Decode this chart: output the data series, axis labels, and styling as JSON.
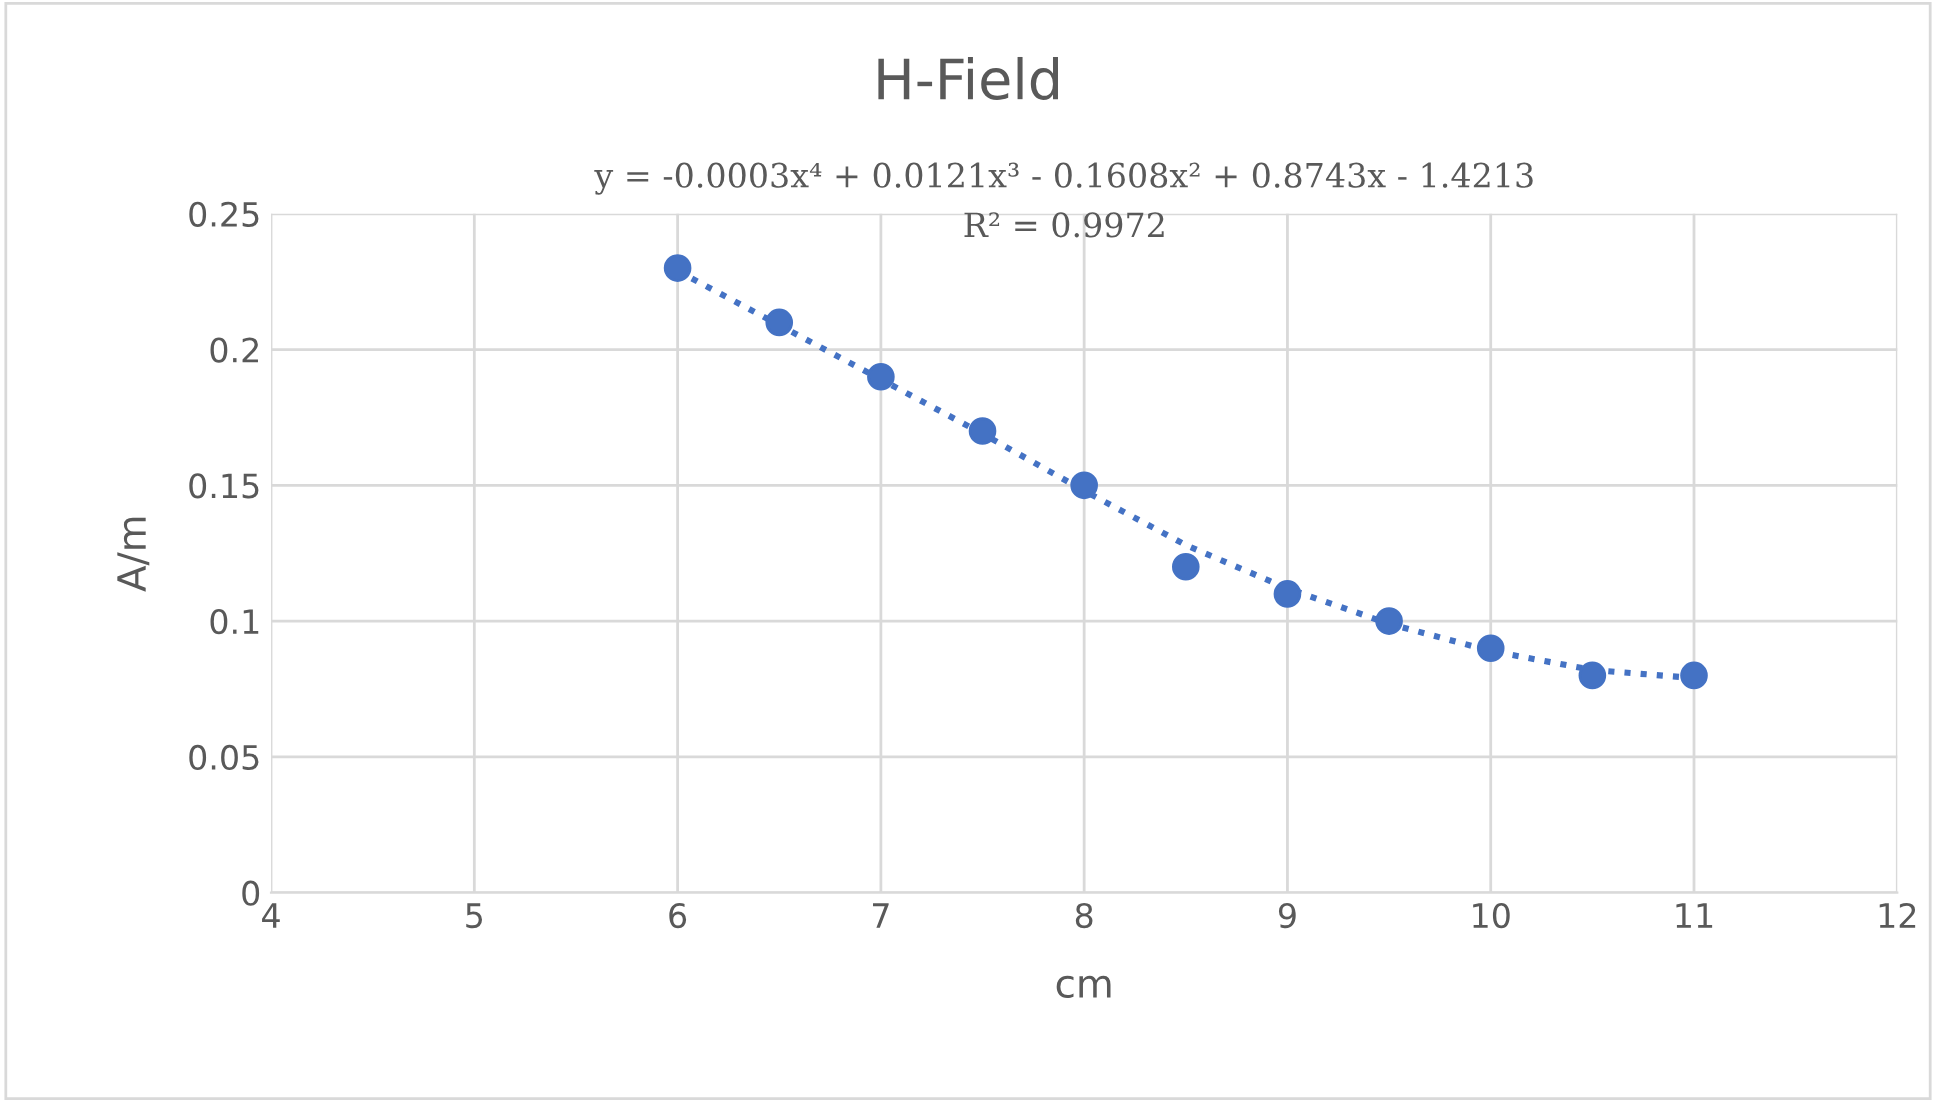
{
  "chart_data": {
    "type": "scatter",
    "title": "H-Field",
    "xlabel": "cm",
    "ylabel": "A/m",
    "annotations": [
      "y = -0.0003x⁴ + 0.0121x³ - 0.1608x² + 0.8743x - 1.4213",
      "R² = 0.9972"
    ],
    "x": [
      6,
      6.5,
      7,
      7.5,
      8,
      8.5,
      9,
      9.5,
      10,
      10.5,
      11
    ],
    "series": [
      {
        "color": "#4472c4",
        "marker": "circle",
        "values": [
          0.23,
          0.21,
          0.19,
          0.17,
          0.15,
          0.12,
          0.11,
          0.1,
          0.09,
          0.08,
          0.08
        ]
      },
      {
        "type": "line",
        "color": "#4472c4",
        "line_style": "dotted",
        "marker": "none",
        "x": [
          6,
          6.5,
          7,
          7.5,
          8,
          8.5,
          9,
          9.5,
          10,
          10.5,
          11
        ],
        "values": [
          0.229,
          0.209,
          0.189,
          0.169,
          0.148,
          0.128,
          0.112,
          0.099,
          0.089,
          0.082,
          0.079
        ]
      }
    ],
    "xlim": [
      4,
      12
    ],
    "xticks": [
      4,
      5,
      6,
      7,
      8,
      9,
      10,
      11,
      12
    ],
    "ylim": [
      0,
      0.25
    ],
    "yticks": [
      0,
      0.05,
      0.1,
      0.15,
      0.2,
      0.25
    ],
    "grid": true,
    "legend": false
  }
}
